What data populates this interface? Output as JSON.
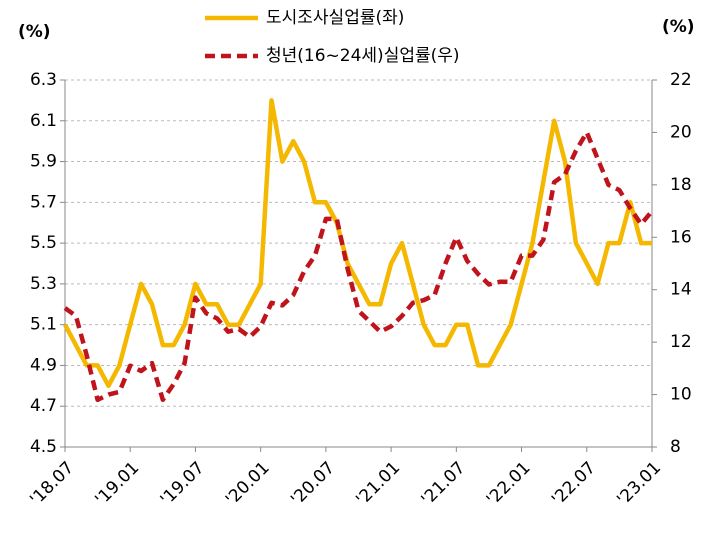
{
  "chart_data": {
    "type": "line",
    "y_label": "(%)",
    "y2_label": "(%)",
    "categories": [
      "'18.07",
      null,
      null,
      null,
      null,
      null,
      "'19.01",
      null,
      null,
      null,
      null,
      null,
      "'19.07",
      null,
      null,
      null,
      null,
      null,
      "'20.01",
      null,
      null,
      null,
      null,
      null,
      "'20.07",
      null,
      null,
      null,
      null,
      null,
      "'21.01",
      null,
      null,
      null,
      null,
      null,
      "'21.07",
      null,
      null,
      null,
      null,
      null,
      "'22.01",
      null,
      null,
      null,
      null,
      null,
      "'22.07",
      null,
      null,
      null,
      null,
      null,
      "'23.01"
    ],
    "series": [
      {
        "name": "도시조사실업률(좌)",
        "color": "#f5b800",
        "dashed": false,
        "values": [
          5.1,
          5.0,
          4.9,
          4.9,
          4.8,
          4.9,
          5.1,
          5.3,
          5.2,
          5.0,
          5.0,
          5.1,
          5.3,
          5.2,
          5.2,
          5.1,
          5.1,
          5.2,
          5.3,
          6.2,
          5.9,
          6.0,
          5.9,
          5.7,
          5.7,
          5.6,
          5.4,
          5.3,
          5.2,
          5.2,
          5.4,
          5.5,
          5.3,
          5.1,
          5.0,
          5.0,
          5.1,
          5.1,
          4.9,
          4.9,
          5.0,
          5.1,
          5.3,
          5.5,
          5.8,
          6.1,
          5.9,
          5.5,
          5.4,
          5.3,
          5.5,
          5.5,
          5.7,
          5.5,
          5.5
        ]
      },
      {
        "name": "청년(16~24세)실업률(우)",
        "color": "#c0141c",
        "dashed": true,
        "axis": "y2",
        "values": [
          13.3,
          13.0,
          11.5,
          9.8,
          10.0,
          10.1,
          11.1,
          10.9,
          11.2,
          9.8,
          10.4,
          11.2,
          13.7,
          13.1,
          12.9,
          12.4,
          12.5,
          12.2,
          12.6,
          13.5,
          13.4,
          13.8,
          14.7,
          15.3,
          16.7,
          16.7,
          14.8,
          13.2,
          12.8,
          12.4,
          12.6,
          13.0,
          13.5,
          13.6,
          13.8,
          15.0,
          16.0,
          15.1,
          14.6,
          14.2,
          14.3,
          14.3,
          15.3,
          15.3,
          15.9,
          18.1,
          18.4,
          19.3,
          20.0,
          19.0,
          18.0,
          17.8,
          17.1,
          16.5,
          17.0
        ]
      }
    ],
    "ylim": [
      4.5,
      6.3
    ],
    "yticks": [
      4.5,
      4.7,
      4.9,
      5.1,
      5.3,
      5.5,
      5.7,
      5.9,
      6.1,
      6.3
    ],
    "y2lim": [
      8,
      22
    ],
    "y2ticks": [
      8,
      10,
      12,
      14,
      16,
      18,
      20,
      22
    ],
    "grid": true
  }
}
